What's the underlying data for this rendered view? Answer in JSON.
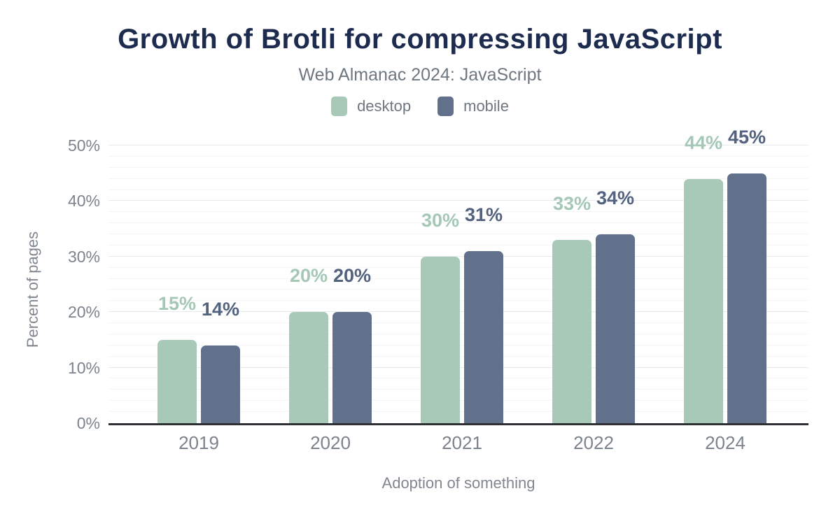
{
  "chart": {
    "title": "Growth of Brotli for compressing JavaScript",
    "subtitle": "Web Almanac 2024: JavaScript",
    "x_axis_title": "Adoption of something",
    "y_axis_title": "Percent of pages"
  },
  "colors": {
    "title": "#1d2b4e",
    "muted_text": "#7d838c",
    "desktop_bar": "#a8c9b8",
    "mobile_bar": "#61718b",
    "desktop_label": "#a5c8b6",
    "mobile_label": "#53627f",
    "axis_line": "#2e3033",
    "gridline_minor": "#f5f5f6",
    "gridline_major": "#e9eaec"
  },
  "chart_data": {
    "type": "bar",
    "title": "Growth of Brotli for compressing JavaScript",
    "subtitle": "Web Almanac 2024: JavaScript",
    "xlabel": "Adoption of something",
    "ylabel": "Percent of pages",
    "categories": [
      "2019",
      "2020",
      "2021",
      "2022",
      "2024"
    ],
    "series": [
      {
        "name": "desktop",
        "color": "#a8c9b8",
        "label_color": "#a5c8b6",
        "values": [
          15,
          20,
          30,
          33,
          44
        ],
        "labels": [
          "15%",
          "20%",
          "30%",
          "33%",
          "44%"
        ]
      },
      {
        "name": "mobile",
        "color": "#61718b",
        "label_color": "#53627f",
        "values": [
          14,
          20,
          31,
          34,
          45
        ],
        "labels": [
          "14%",
          "20%",
          "31%",
          "34%",
          "45%"
        ]
      }
    ],
    "ylim": [
      0,
      50
    ],
    "yticks": [
      {
        "value": 0,
        "label": "0%"
      },
      {
        "value": 10,
        "label": "10%"
      },
      {
        "value": 20,
        "label": "20%"
      },
      {
        "value": 30,
        "label": "30%"
      },
      {
        "value": 40,
        "label": "40%"
      },
      {
        "value": 50,
        "label": "50%"
      }
    ],
    "minor_grid_step": 2,
    "grid": true,
    "legend_position": "top",
    "data_labels": true
  }
}
